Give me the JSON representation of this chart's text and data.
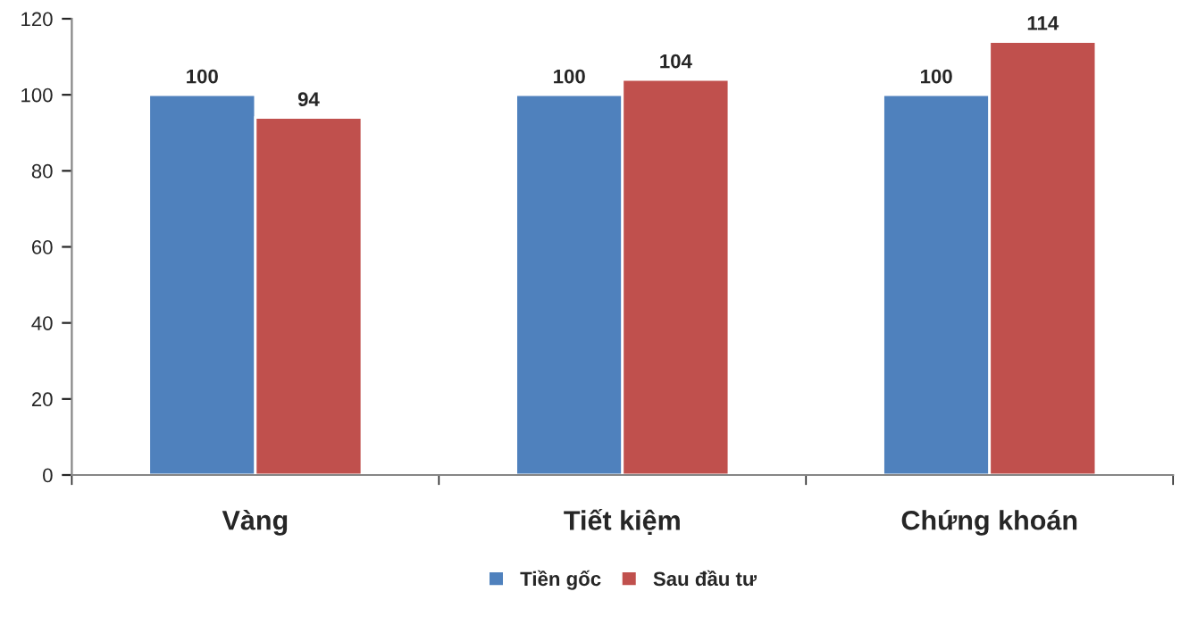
{
  "chart_data": {
    "type": "bar",
    "categories": [
      "Vàng",
      "Tiết kiệm",
      "Chứng khoán"
    ],
    "series": [
      {
        "name": "Tiền gốc",
        "color": "#4f81bd",
        "values": [
          100,
          100,
          100
        ]
      },
      {
        "name": "Sau đầu tư",
        "color": "#c0504d",
        "values": [
          94,
          104,
          114
        ]
      }
    ],
    "ylim": [
      0,
      120
    ],
    "yticks": [
      0,
      20,
      40,
      60,
      80,
      100,
      120
    ],
    "data_labels": true,
    "grid": false,
    "legend": "bottom"
  }
}
